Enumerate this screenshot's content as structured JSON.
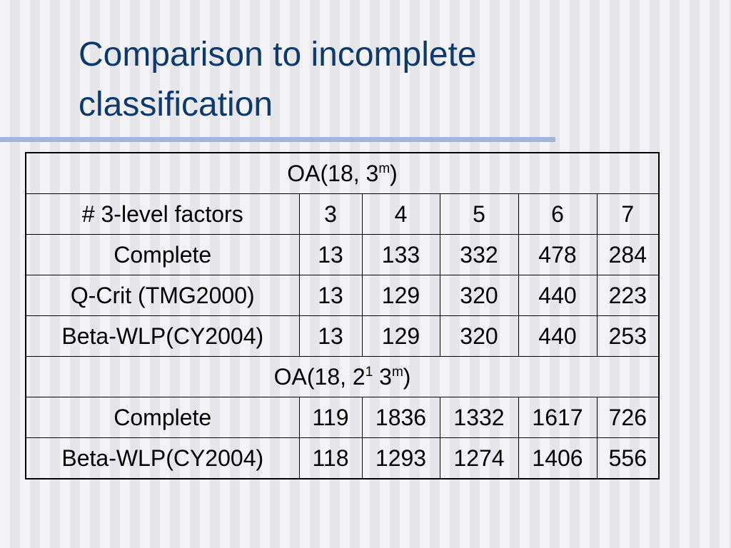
{
  "title": "Comparison to incomplete classification",
  "table": {
    "sections": [
      {
        "heading": [
          {
            "text": "OA(18, 3"
          },
          {
            "sup": "m"
          },
          {
            "text": ")"
          }
        ],
        "header": [
          "# 3-level factors",
          3,
          4,
          5,
          6,
          7
        ],
        "rows": [
          [
            "Complete",
            13,
            133,
            332,
            478,
            284
          ],
          [
            "Q-Crit (TMG2000)",
            13,
            129,
            320,
            440,
            223
          ],
          [
            "Beta-WLP(CY2004)",
            13,
            129,
            320,
            440,
            253
          ]
        ]
      },
      {
        "heading": [
          {
            "text": "OA(18, 2"
          },
          {
            "sup": "1"
          },
          {
            "text": " 3"
          },
          {
            "sup": "m"
          },
          {
            "text": ")"
          }
        ],
        "rows": [
          [
            "Complete",
            119,
            1836,
            1332,
            1617,
            726
          ],
          [
            "Beta-WLP(CY2004)",
            118,
            1293,
            1274,
            1406,
            556
          ]
        ]
      }
    ]
  }
}
